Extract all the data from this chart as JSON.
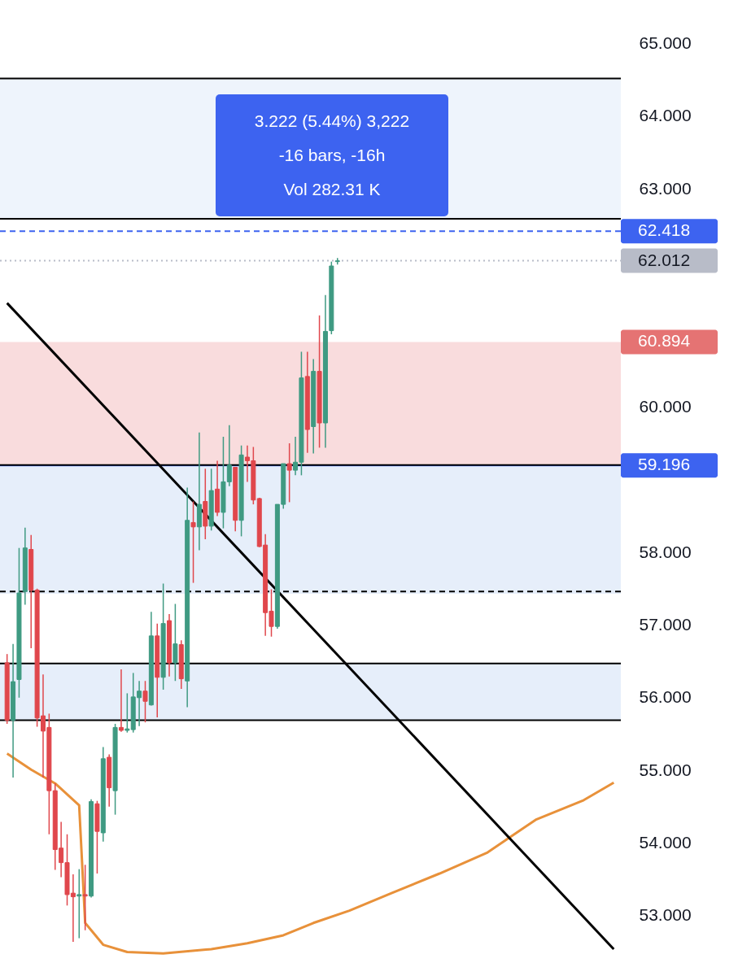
{
  "chart_data": {
    "type": "candlestick",
    "categories": [
      null,
      null,
      null,
      null,
      null,
      null,
      null,
      null,
      null,
      null,
      null,
      null,
      null,
      null,
      null,
      null,
      null,
      null,
      null,
      null,
      null,
      null,
      null,
      null,
      null,
      null,
      null,
      null,
      null,
      null,
      null,
      null,
      null,
      null,
      null,
      null,
      null,
      null,
      null,
      null,
      null,
      null,
      null,
      null,
      null,
      null,
      null,
      null,
      null,
      null,
      null,
      null,
      null,
      null,
      null,
      null,
      null,
      null,
      null,
      null,
      null,
      null,
      null,
      null,
      null,
      null,
      null,
      null,
      null,
      null,
      null,
      null,
      null,
      null,
      null,
      null,
      null,
      null,
      null,
      null,
      null,
      null,
      null,
      null,
      null,
      null,
      null,
      null,
      null,
      null,
      null,
      null,
      null,
      null,
      null,
      null,
      null,
      null,
      null,
      null,
      null,
      null
    ],
    "ohlc": [
      [
        56.48,
        56.6,
        55.64,
        55.69
      ],
      [
        55.69,
        56.74,
        54.9,
        56.22
      ],
      [
        56.25,
        58.06,
        56.0,
        57.44
      ],
      [
        57.46,
        58.34,
        57.28,
        58.06
      ],
      [
        58.04,
        58.24,
        56.68,
        57.48
      ],
      [
        57.48,
        57.5,
        55.6,
        55.72
      ],
      [
        55.75,
        56.32,
        54.9,
        55.54
      ],
      [
        55.59,
        55.78,
        54.12,
        54.72
      ],
      [
        54.72,
        54.82,
        53.63,
        53.91
      ],
      [
        53.93,
        54.29,
        53.53,
        53.73
      ],
      [
        53.73,
        54.12,
        53.14,
        53.29
      ],
      [
        53.31,
        53.57,
        52.64,
        53.26
      ],
      [
        53.27,
        53.64,
        52.69,
        53.29
      ],
      [
        53.29,
        53.7,
        52.8,
        53.27
      ],
      [
        53.27,
        54.6,
        53.25,
        54.57
      ],
      [
        54.54,
        54.58,
        53.58,
        54.16
      ],
      [
        54.14,
        55.32,
        54.02,
        55.16
      ],
      [
        55.18,
        55.22,
        54.5,
        54.76
      ],
      [
        54.72,
        55.64,
        54.39,
        55.59
      ],
      [
        55.59,
        56.39,
        55.53,
        55.55
      ],
      [
        55.55,
        56.06,
        55.52,
        55.57
      ],
      [
        55.56,
        56.34,
        55.52,
        56.01
      ],
      [
        56.0,
        56.23,
        55.61,
        56.09
      ],
      [
        56.09,
        56.23,
        55.66,
        55.95
      ],
      [
        55.9,
        57.18,
        55.89,
        56.85
      ],
      [
        56.85,
        57.02,
        55.73,
        56.28
      ],
      [
        56.28,
        57.57,
        56.11,
        57.02
      ],
      [
        57.06,
        57.15,
        56.29,
        56.48
      ],
      [
        56.48,
        57.29,
        56.23,
        56.74
      ],
      [
        56.73,
        56.79,
        56.12,
        56.26
      ],
      [
        56.23,
        58.89,
        55.87,
        58.44
      ],
      [
        58.41,
        58.7,
        57.58,
        58.35
      ],
      [
        58.35,
        59.65,
        58.03,
        58.66
      ],
      [
        58.7,
        59.15,
        58.18,
        58.36
      ],
      [
        58.36,
        59.15,
        58.3,
        58.85
      ],
      [
        58.87,
        59.26,
        58.5,
        58.55
      ],
      [
        58.55,
        59.59,
        58.33,
        58.97
      ],
      [
        58.97,
        59.75,
        58.91,
        59.2
      ],
      [
        59.17,
        59.17,
        58.29,
        58.44
      ],
      [
        58.44,
        59.47,
        58.22,
        59.34
      ],
      [
        59.31,
        59.47,
        58.97,
        59.26
      ],
      [
        59.26,
        59.45,
        58.66,
        58.72
      ],
      [
        58.74,
        58.75,
        58.07,
        58.08
      ],
      [
        58.1,
        58.25,
        56.85,
        57.17
      ],
      [
        57.19,
        57.49,
        56.84,
        56.98
      ],
      [
        56.98,
        58.66,
        56.95,
        58.66
      ],
      [
        58.66,
        59.22,
        58.6,
        59.22
      ],
      [
        59.22,
        59.5,
        58.69,
        59.13
      ],
      [
        59.13,
        59.59,
        59.06,
        59.24
      ],
      [
        59.24,
        60.76,
        59.06,
        60.4
      ],
      [
        60.42,
        60.76,
        59.37,
        59.69
      ],
      [
        59.73,
        60.66,
        59.36,
        60.49
      ],
      [
        60.49,
        61.26,
        59.44,
        59.78
      ],
      [
        59.78,
        61.54,
        59.44,
        61.04
      ],
      [
        61.05,
        62.0,
        61.0,
        61.94
      ],
      [
        62.0,
        62.05,
        61.96,
        62.012
      ],
      null,
      null,
      null,
      null,
      null,
      null,
      null,
      null,
      null,
      null,
      null,
      null,
      null,
      null,
      null,
      null,
      null,
      null,
      null,
      null,
      null,
      null,
      null,
      null,
      null,
      null,
      null,
      null,
      null,
      null,
      null,
      null,
      null,
      null,
      null,
      null,
      null,
      null,
      null,
      null,
      null,
      null,
      null,
      null,
      null,
      null
    ],
    "colors": [
      "#e0474c",
      "#3f9a82",
      "#3f9a82",
      "#3f9a82",
      "#e0474c",
      "#e0474c",
      "#e0474c",
      "#e0474c",
      "#e0474c",
      "#e0474c",
      "#e0474c",
      "#e0474c",
      "#3f9a82",
      "#e0474c",
      "#3f9a82",
      "#e0474c",
      "#3f9a82",
      "#e0474c",
      "#3f9a82",
      "#e0474c",
      "#3f9a82",
      "#3f9a82",
      "#3f9a82",
      "#e0474c",
      "#3f9a82",
      "#e0474c",
      "#3f9a82",
      "#e0474c",
      "#3f9a82",
      "#e0474c",
      "#3f9a82",
      "#e0474c",
      "#3f9a82",
      "#e0474c",
      "#3f9a82",
      "#e0474c",
      "#3f9a82",
      "#3f9a82",
      "#e0474c",
      "#3f9a82",
      "#e0474c",
      "#e0474c",
      "#e0474c",
      "#e0474c",
      "#e0474c",
      "#3f9a82",
      "#3f9a82",
      "#e0474c",
      "#3f9a82",
      "#3f9a82",
      "#e0474c",
      "#3f9a82",
      "#e0474c",
      "#3f9a82",
      "#3f9a82",
      "#3f9a82",
      null,
      null,
      null,
      null,
      null,
      null,
      null,
      null,
      null,
      null,
      null,
      null,
      null,
      null,
      null,
      null,
      null,
      null,
      null,
      null,
      null,
      null,
      null,
      null,
      null,
      null,
      null,
      null,
      null,
      null,
      null,
      null,
      null,
      null,
      null,
      null,
      null,
      null,
      null,
      null,
      null,
      null,
      null,
      null,
      null,
      null
    ],
    "series": [
      {
        "type": "line",
        "color": "#e8913a",
        "values": [
          55.23,
          null,
          null,
          null,
          55.01,
          null,
          null,
          null,
          54.82,
          null,
          null,
          null,
          54.52,
          52.9,
          null,
          null,
          52.6,
          null,
          null,
          null,
          52.5,
          null,
          null,
          null,
          null,
          null,
          52.48,
          null,
          null,
          null,
          null,
          null,
          null,
          null,
          52.54,
          null,
          null,
          null,
          null,
          null,
          52.62,
          null,
          null,
          null,
          null,
          null,
          52.73,
          null,
          null,
          null,
          null,
          52.9,
          null,
          null,
          null,
          null,
          null,
          53.07,
          null,
          null,
          null,
          null,
          null,
          null,
          53.31,
          null,
          null,
          null,
          null,
          null,
          null,
          null,
          53.58,
          null,
          null,
          null,
          null,
          null,
          null,
          null,
          53.87,
          null,
          null,
          null,
          null,
          null,
          null,
          null,
          54.32,
          null,
          null,
          null,
          null,
          null,
          null,
          null,
          54.59,
          null,
          null,
          null,
          null,
          54.83
        ]
      },
      {
        "type": "line",
        "color": "#000000",
        "values": [
          61.43,
          null,
          null,
          null,
          null,
          null,
          null,
          null,
          null,
          null,
          null,
          null,
          null,
          null,
          null,
          null,
          null,
          null,
          null,
          null,
          null,
          null,
          null,
          null,
          null,
          null,
          null,
          null,
          null,
          null,
          null,
          null,
          null,
          null,
          null,
          null,
          null,
          null,
          null,
          null,
          null,
          null,
          null,
          null,
          null,
          null,
          null,
          null,
          null,
          null,
          null,
          null,
          null,
          null,
          null,
          null,
          null,
          null,
          null,
          null,
          null,
          null,
          null,
          null,
          null,
          null,
          null,
          null,
          null,
          null,
          null,
          null,
          null,
          null,
          null,
          null,
          null,
          null,
          null,
          null,
          null,
          null,
          null,
          null,
          null,
          null,
          null,
          null,
          null,
          null,
          null,
          null,
          null,
          null,
          null,
          null,
          null,
          null,
          null,
          null,
          null,
          52.54
        ]
      }
    ],
    "ylim": [
      52.17,
      65.6
    ],
    "yticks": [
      {
        "value": 53,
        "label": "53.000"
      },
      {
        "value": 54,
        "label": "54.000"
      },
      {
        "value": 55,
        "label": "55.000"
      },
      {
        "value": 56,
        "label": "56.000"
      },
      {
        "value": 57,
        "label": "57.000"
      },
      {
        "value": 58,
        "label": "58.000"
      },
      {
        "value": 60,
        "label": "60.000"
      },
      {
        "value": 63,
        "label": "63.000"
      },
      {
        "value": 64,
        "label": "64.000"
      },
      {
        "value": 65,
        "label": "65.000"
      }
    ],
    "bands": [
      {
        "axis": "y",
        "from": 59.2,
        "to": 60.894,
        "color": "#f9dcdd",
        "label": "60.894"
      },
      {
        "axis": "y",
        "from": 62.59,
        "to": 64.52,
        "color": "#eef4fc"
      },
      {
        "axis": "y",
        "from": 57.43,
        "to": 59.2,
        "color": "#e6eefa"
      },
      {
        "axis": "y",
        "from": 55.69,
        "to": 56.47,
        "color": "#e6eefa"
      }
    ],
    "ref_lines": [
      {
        "axis": "y",
        "value": 64.52,
        "color": "#000000"
      },
      {
        "axis": "y",
        "value": 62.59,
        "color": "#000000"
      },
      {
        "axis": "y",
        "value": 62.418,
        "color": "#3d63f0",
        "line_style": "dashed",
        "label": "62.418"
      },
      {
        "axis": "y",
        "value": 62.012,
        "color": "#b8bcc8",
        "line_style": "dotted",
        "label": "62.012"
      },
      {
        "axis": "y",
        "value": 59.196,
        "color": "#3d63f0",
        "label": "59.196"
      },
      {
        "axis": "y",
        "value": 59.2,
        "color": "#000000"
      },
      {
        "axis": "y",
        "value": 57.46,
        "color": "#000000",
        "line_style": "dashed"
      },
      {
        "axis": "y",
        "value": 56.47,
        "color": "#000000"
      },
      {
        "axis": "y",
        "value": 55.69,
        "color": "#000000"
      }
    ],
    "annotations": [
      "3.222 (5.44%) 3,222",
      "-16 bars, -16h",
      "Vol 282.31 K"
    ],
    "grid": false
  }
}
